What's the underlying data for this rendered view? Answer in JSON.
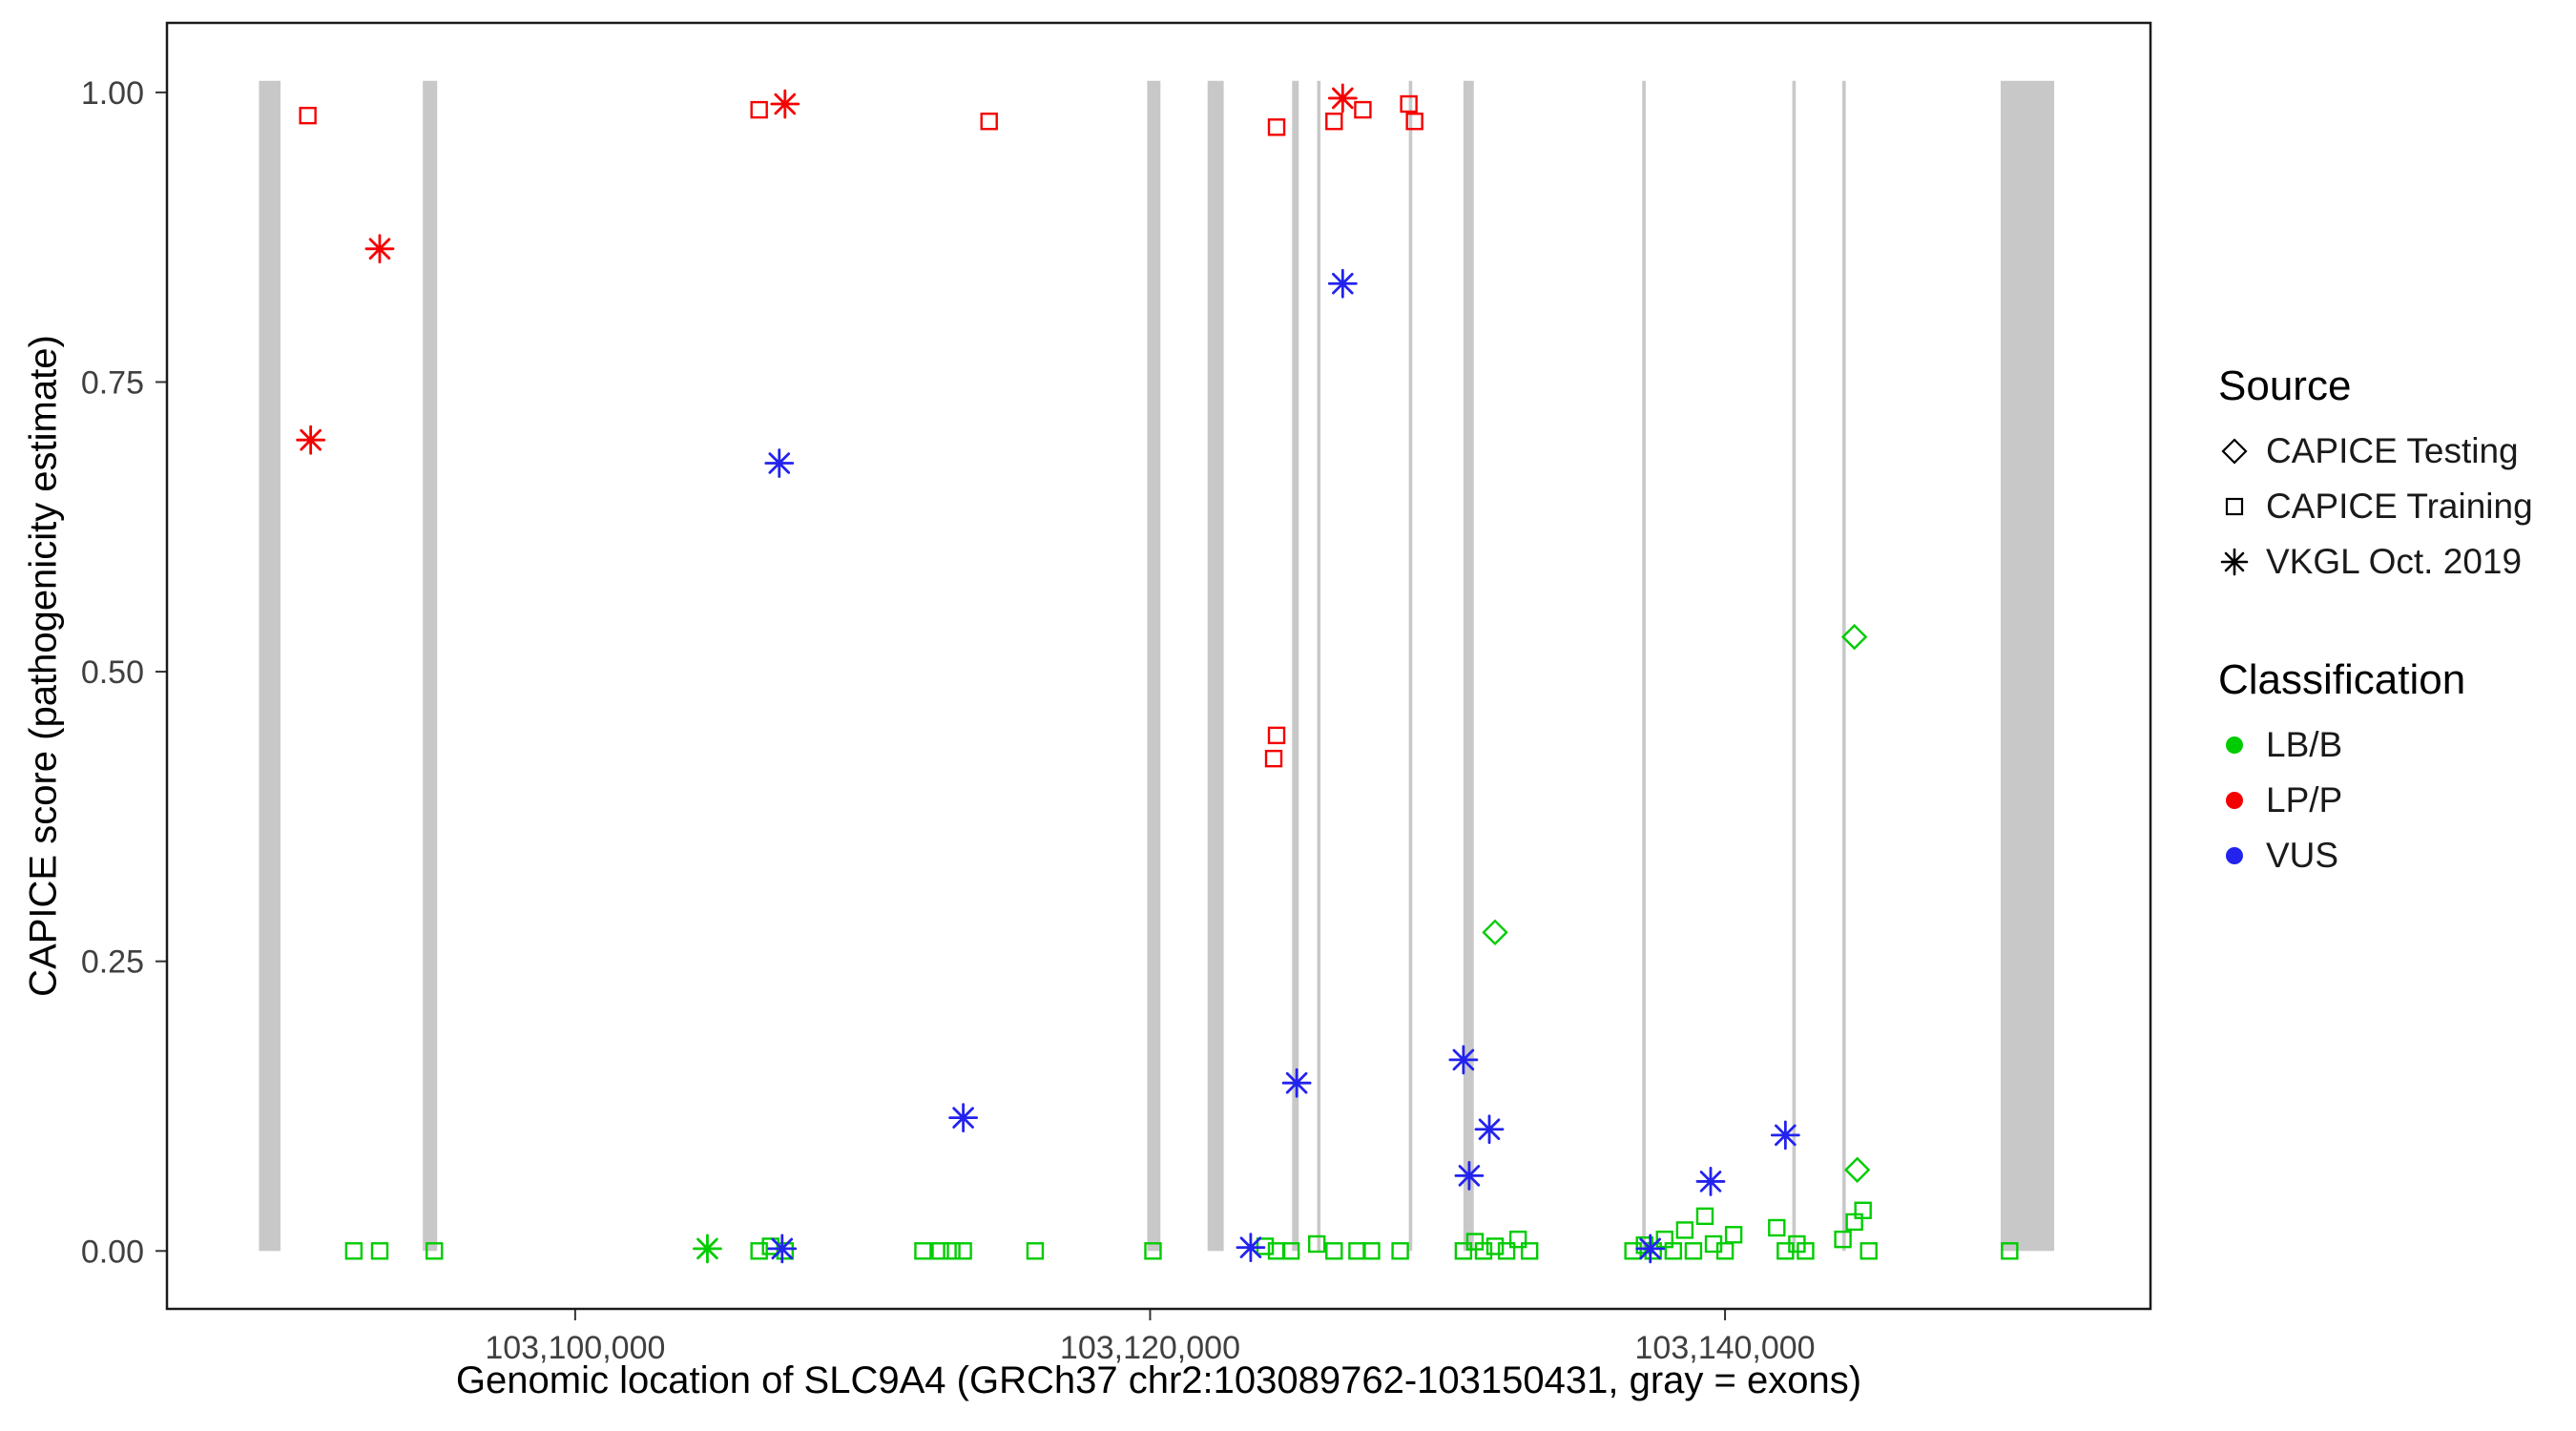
{
  "chart_data": {
    "type": "scatter",
    "title": "",
    "xlabel": "Genomic location of SLC9A4 (GRCh37 chr2:103089762-103150431, gray = exons)",
    "ylabel": "CAPICE score (pathogenicity estimate)",
    "grid": "off",
    "legend_position": "right",
    "x_axis": {
      "range": [
        103085800,
        103154800
      ],
      "ticks": [
        {
          "value": 103100000,
          "label": "103,100,000"
        },
        {
          "value": 103120000,
          "label": "103,120,000"
        },
        {
          "value": 103140000,
          "label": "103,140,000"
        }
      ]
    },
    "y_axis": {
      "range": [
        -0.05,
        1.06
      ],
      "ticks": [
        {
          "value": 0.0,
          "label": "0.00"
        },
        {
          "value": 0.25,
          "label": "0.25"
        },
        {
          "value": 0.5,
          "label": "0.50"
        },
        {
          "value": 0.75,
          "label": "0.75"
        },
        {
          "value": 1.0,
          "label": "1.00"
        }
      ]
    },
    "colors": {
      "LB/B": "#00CC00",
      "LP/P": "#F50000",
      "VUS": "#2323EE",
      "exon": "#C8C8C8"
    },
    "exons": [
      {
        "start": 103089000,
        "end": 103089750
      },
      {
        "start": 103094700,
        "end": 103095200
      },
      {
        "start": 103119900,
        "end": 103120360
      },
      {
        "start": 103122000,
        "end": 103122560
      },
      {
        "start": 103124940,
        "end": 103125170
      },
      {
        "start": 103125810,
        "end": 103125930
      },
      {
        "start": 103129000,
        "end": 103129120
      },
      {
        "start": 103130900,
        "end": 103131260
      },
      {
        "start": 103137120,
        "end": 103137240
      },
      {
        "start": 103142340,
        "end": 103142460
      },
      {
        "start": 103144080,
        "end": 103144200
      },
      {
        "start": 103149590,
        "end": 103151450
      }
    ],
    "series": [
      {
        "classification": "LB/B",
        "source": "CAPICE Training",
        "shape": "square",
        "points": [
          [
            103092300,
            0
          ],
          [
            103093200,
            0
          ],
          [
            103095100,
            0
          ],
          [
            103106400,
            0
          ],
          [
            103106800,
            0.004
          ],
          [
            103107300,
            0
          ],
          [
            103112100,
            0
          ],
          [
            103112700,
            0
          ],
          [
            103113100,
            0
          ],
          [
            103113500,
            0
          ],
          [
            103116000,
            0
          ],
          [
            103120100,
            0
          ],
          [
            103124000,
            0.004
          ],
          [
            103124400,
            0
          ],
          [
            103124900,
            0
          ],
          [
            103125800,
            0.006
          ],
          [
            103126400,
            0
          ],
          [
            103127200,
            0
          ],
          [
            103127700,
            0
          ],
          [
            103128700,
            0
          ],
          [
            103130900,
            0
          ],
          [
            103131300,
            0.008
          ],
          [
            103131600,
            0
          ],
          [
            103132000,
            0.004
          ],
          [
            103132400,
            0
          ],
          [
            103132800,
            0.01
          ],
          [
            103133200,
            0
          ],
          [
            103136800,
            0
          ],
          [
            103137200,
            0.005
          ],
          [
            103137500,
            0
          ],
          [
            103137900,
            0.01
          ],
          [
            103138200,
            0
          ],
          [
            103138600,
            0.018
          ],
          [
            103138900,
            0
          ],
          [
            103139300,
            0.03
          ],
          [
            103139600,
            0.006
          ],
          [
            103140000,
            0
          ],
          [
            103140300,
            0.014
          ],
          [
            103141800,
            0.02
          ],
          [
            103142100,
            0
          ],
          [
            103142500,
            0.006
          ],
          [
            103142800,
            0
          ],
          [
            103144100,
            0.01
          ],
          [
            103144500,
            0.025
          ],
          [
            103144800,
            0.035
          ],
          [
            103145000,
            0
          ],
          [
            103149900,
            0
          ]
        ]
      },
      {
        "classification": "LB/B",
        "source": "CAPICE Testing",
        "shape": "diamond",
        "points": [
          [
            103132000,
            0.275
          ],
          [
            103144500,
            0.53
          ],
          [
            103144600,
            0.07
          ]
        ]
      },
      {
        "classification": "LB/B",
        "source": "VKGL Oct. 2019",
        "shape": "asterisk",
        "points": [
          [
            103104600,
            0.002
          ]
        ]
      },
      {
        "classification": "VUS",
        "source": "VKGL Oct. 2019",
        "shape": "asterisk",
        "points": [
          [
            103107100,
            0.68
          ],
          [
            103113500,
            0.115
          ],
          [
            103126700,
            0.835
          ],
          [
            103125100,
            0.145
          ],
          [
            103130900,
            0.165
          ],
          [
            103131800,
            0.105
          ],
          [
            103131100,
            0.065
          ],
          [
            103139500,
            0.06
          ],
          [
            103142100,
            0.1
          ],
          [
            103123500,
            0.003
          ],
          [
            103107200,
            0.002
          ],
          [
            103137400,
            0.002
          ]
        ]
      },
      {
        "classification": "LP/P",
        "source": "CAPICE Training",
        "shape": "square",
        "points": [
          [
            103090700,
            0.98
          ],
          [
            103106400,
            0.985
          ],
          [
            103114400,
            0.975
          ],
          [
            103124400,
            0.97
          ],
          [
            103126400,
            0.975
          ],
          [
            103127400,
            0.985
          ],
          [
            103129000,
            0.99
          ],
          [
            103129200,
            0.975
          ],
          [
            103124400,
            0.445
          ],
          [
            103124300,
            0.425
          ]
        ]
      },
      {
        "classification": "LP/P",
        "source": "VKGL Oct. 2019",
        "shape": "asterisk",
        "points": [
          [
            103090800,
            0.7
          ],
          [
            103093200,
            0.865
          ],
          [
            103107300,
            0.99
          ],
          [
            103126700,
            0.995
          ]
        ]
      }
    ],
    "legend": {
      "source": {
        "title": "Source",
        "items": [
          {
            "shape": "diamond",
            "label": "CAPICE Testing"
          },
          {
            "shape": "square",
            "label": "CAPICE Training"
          },
          {
            "shape": "asterisk",
            "label": "VKGL Oct. 2019"
          }
        ]
      },
      "classification": {
        "title": "Classification",
        "items": [
          {
            "label": "LB/B"
          },
          {
            "label": "LP/P"
          },
          {
            "label": "VUS"
          }
        ]
      }
    }
  }
}
